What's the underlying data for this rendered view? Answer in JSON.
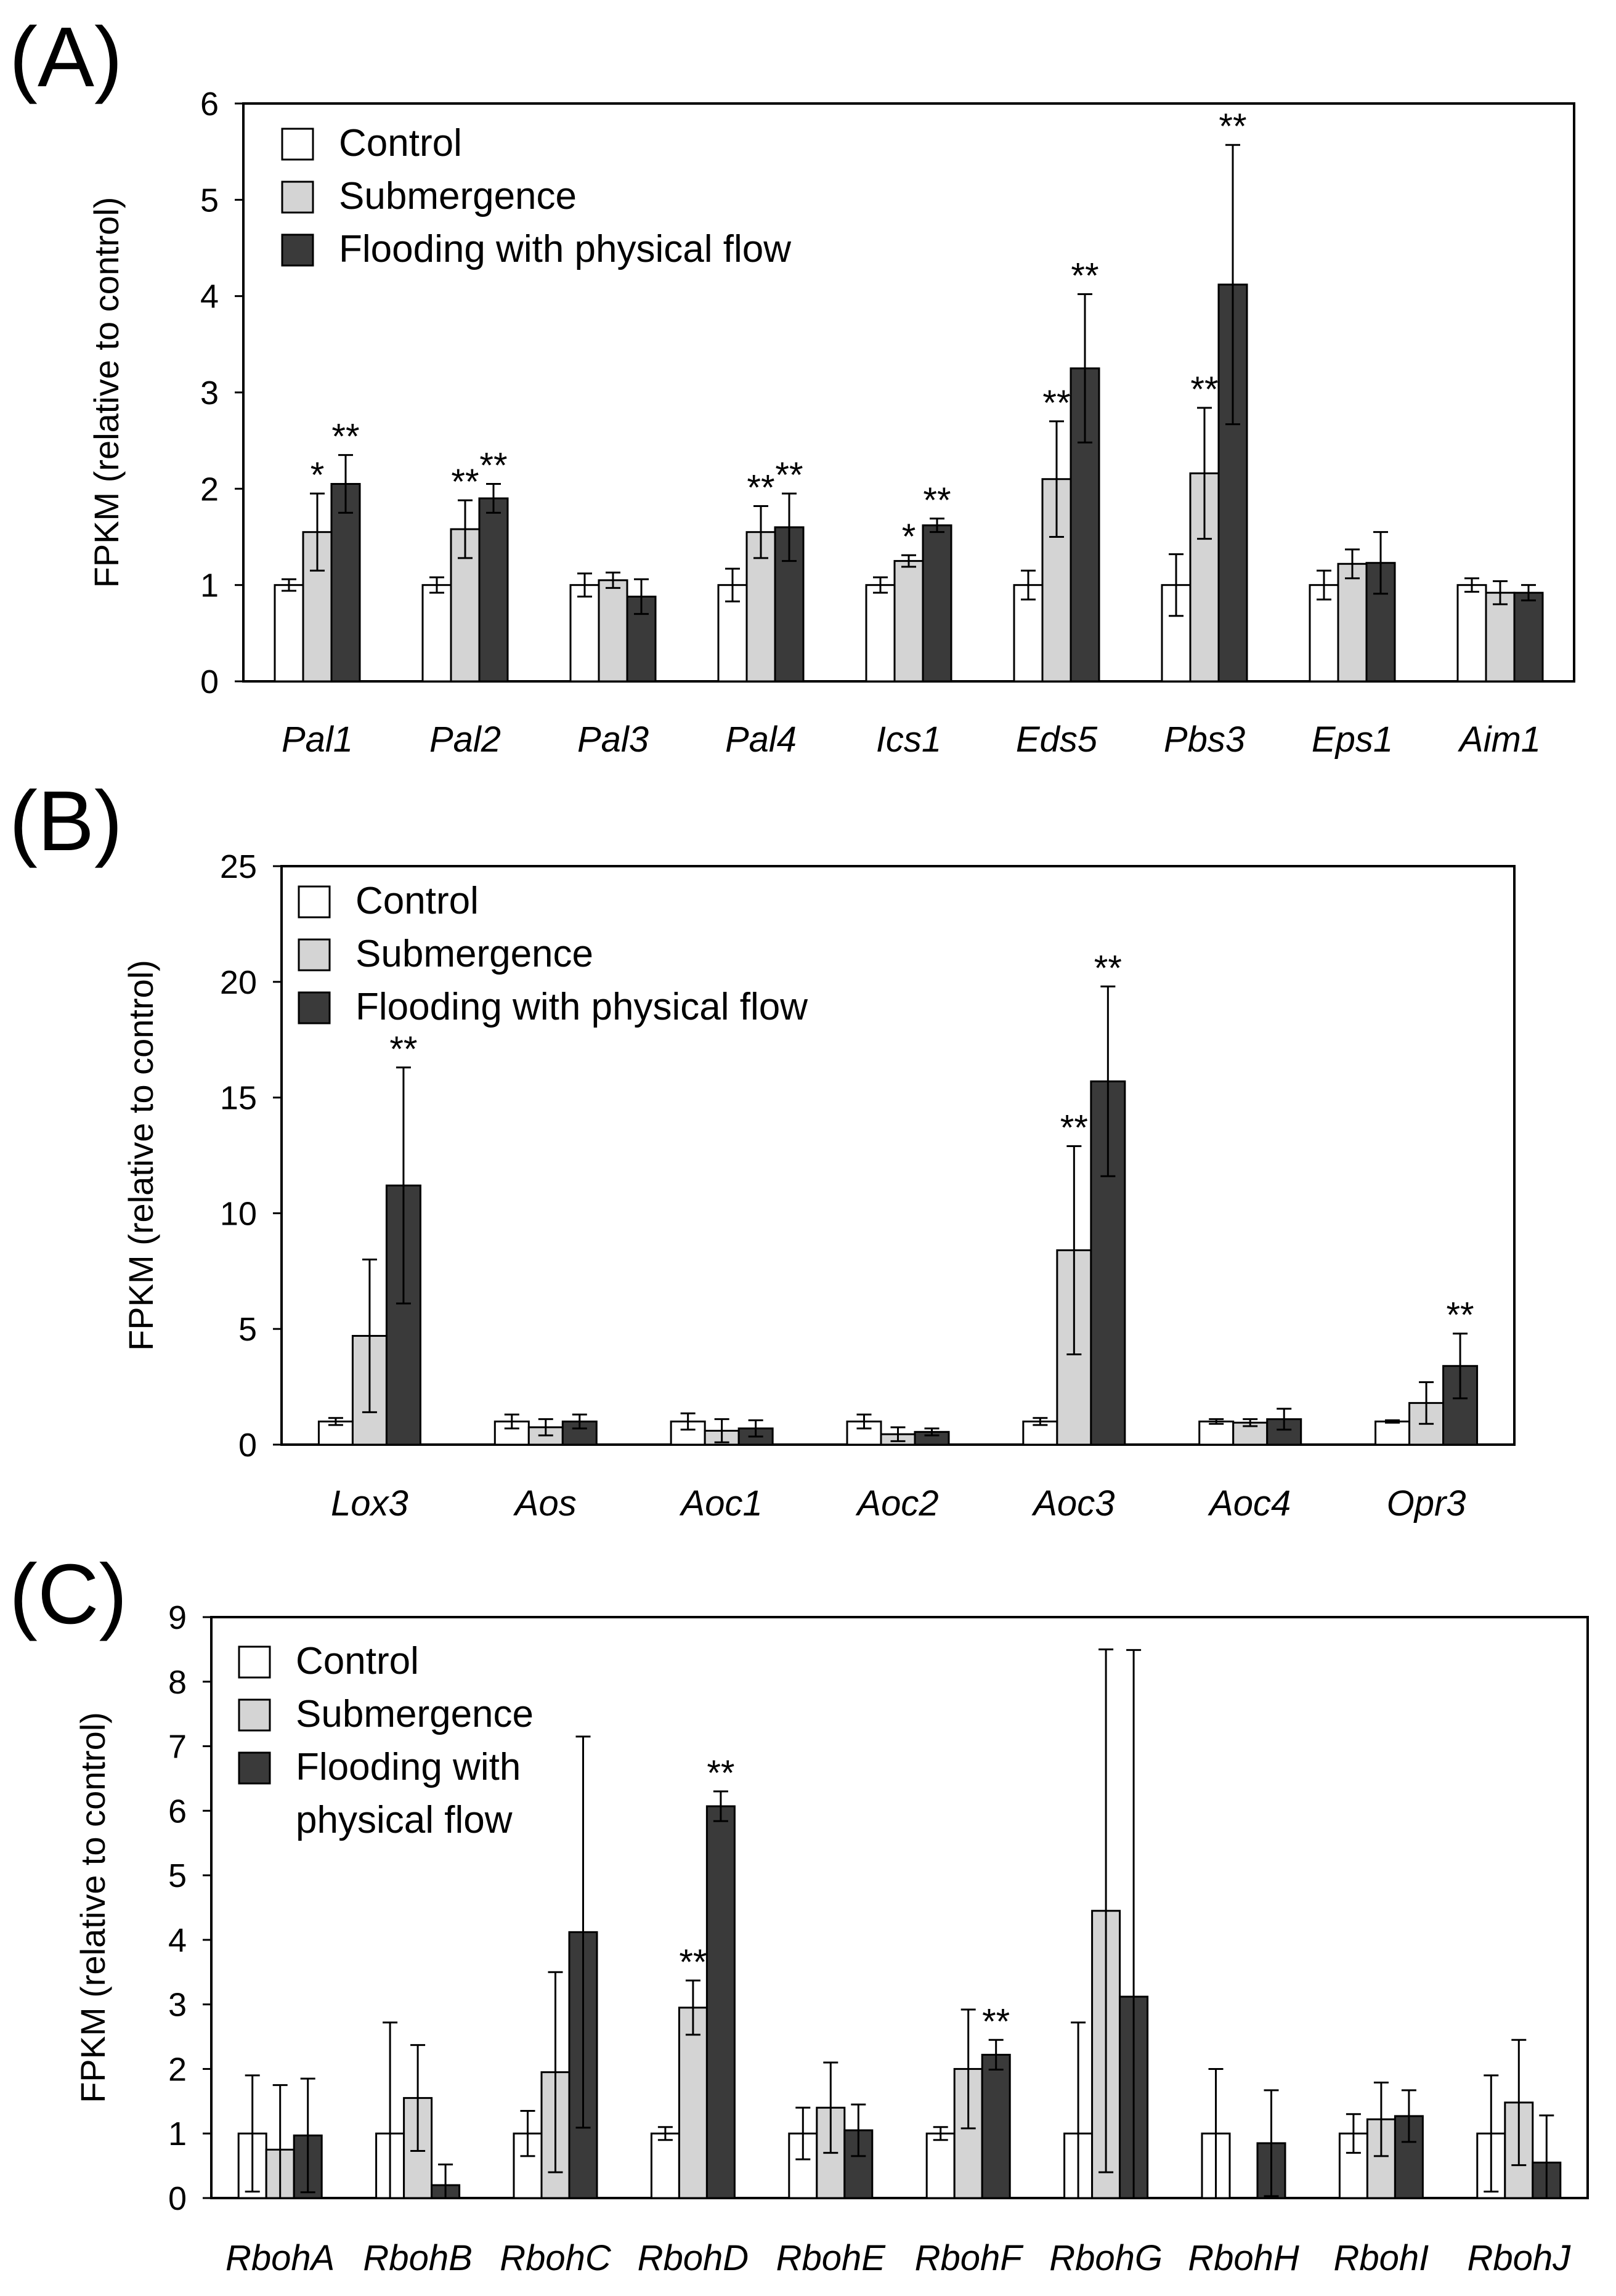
{
  "colors": {
    "control": "#ffffff",
    "submergence": "#d4d4d4",
    "flooding": "#3a3a3a",
    "axis": "#000000"
  },
  "chart_data": [
    {
      "type": "bar",
      "panel_label": "(A)",
      "ylabel": "FPKM (relative to control)",
      "ylim": [
        0,
        6
      ],
      "yticks": [
        "0",
        "1",
        "2",
        "3",
        "4",
        "5",
        "6"
      ],
      "legend": [
        "Control",
        "Submergence",
        "Flooding with physical flow"
      ],
      "categories": [
        "Pal1",
        "Pal2",
        "Pal3",
        "Pal4",
        "Ics1",
        "Eds5",
        "Pbs3",
        "Eps1",
        "Aim1"
      ],
      "series": [
        {
          "name": "Control",
          "values": [
            1.0,
            1.0,
            1.0,
            1.0,
            1.0,
            1.0,
            1.0,
            1.0,
            1.0
          ],
          "errors": [
            0.06,
            0.08,
            0.12,
            0.17,
            0.08,
            0.15,
            0.32,
            0.15,
            0.07
          ],
          "sig": [
            "",
            "",
            "",
            "",
            "",
            "",
            "",
            "",
            ""
          ]
        },
        {
          "name": "Submergence",
          "values": [
            1.55,
            1.58,
            1.05,
            1.55,
            1.25,
            2.1,
            2.16,
            1.22,
            0.92
          ],
          "errors": [
            0.4,
            0.3,
            0.08,
            0.27,
            0.06,
            0.6,
            0.68,
            0.15,
            0.12
          ],
          "sig": [
            "*",
            "**",
            "",
            "**",
            "*",
            "**",
            "**",
            "",
            ""
          ]
        },
        {
          "name": "Flooding with physical flow",
          "values": [
            2.05,
            1.9,
            0.88,
            1.6,
            1.62,
            3.25,
            4.12,
            1.23,
            0.92
          ],
          "errors": [
            0.3,
            0.15,
            0.18,
            0.35,
            0.07,
            0.77,
            1.45,
            0.32,
            0.08
          ],
          "sig": [
            "**",
            "**",
            "",
            "**",
            "**",
            "**",
            "**",
            "",
            ""
          ]
        }
      ]
    },
    {
      "type": "bar",
      "panel_label": "(B)",
      "ylabel": "FPKM (relative to control)",
      "ylim": [
        0,
        25
      ],
      "yticks": [
        "0",
        "5",
        "10",
        "15",
        "20",
        "25"
      ],
      "legend": [
        "Control",
        "Submergence",
        "Flooding with physical flow"
      ],
      "categories": [
        "Lox3",
        "Aos",
        "Aoc1",
        "Aoc2",
        "Aoc3",
        "Aoc4",
        "Opr3"
      ],
      "series": [
        {
          "name": "Control",
          "values": [
            1.0,
            1.0,
            1.0,
            1.0,
            1.0,
            1.0,
            1.0
          ],
          "errors": [
            0.15,
            0.3,
            0.35,
            0.3,
            0.15,
            0.1,
            0.05
          ],
          "sig": [
            "",
            "",
            "",
            "",
            "",
            "",
            ""
          ]
        },
        {
          "name": "Submergence",
          "values": [
            4.7,
            0.75,
            0.6,
            0.45,
            8.4,
            0.95,
            1.8
          ],
          "errors": [
            3.3,
            0.35,
            0.5,
            0.3,
            4.5,
            0.15,
            0.9
          ],
          "sig": [
            "",
            "",
            "",
            "",
            "**",
            "",
            ""
          ]
        },
        {
          "name": "Flooding with physical flow",
          "values": [
            11.2,
            1.0,
            0.7,
            0.55,
            15.7,
            1.1,
            3.4
          ],
          "errors": [
            5.1,
            0.3,
            0.35,
            0.15,
            4.1,
            0.45,
            1.4
          ],
          "sig": [
            "**",
            "",
            "",
            "",
            "**",
            "",
            "**"
          ]
        }
      ]
    },
    {
      "type": "bar",
      "panel_label": "(C)",
      "ylabel": "FPKM (relative to control)",
      "ylim": [
        0,
        9
      ],
      "yticks": [
        "0",
        "1",
        "2",
        "3",
        "4",
        "5",
        "6",
        "7",
        "8",
        "9"
      ],
      "legend": [
        "Control",
        "Submergence",
        "Flooding with",
        "physical flow"
      ],
      "categories": [
        "RbohA",
        "RbohB",
        "RbohC",
        "RbohD",
        "RbohE",
        "RbohF",
        "RbohG",
        "RbohH",
        "RbohI",
        "RbohJ"
      ],
      "series": [
        {
          "name": "Control",
          "values": [
            1.0,
            1.0,
            1.0,
            1.0,
            1.0,
            1.0,
            1.0,
            1.0,
            1.0,
            1.0
          ],
          "errors": [
            0.9,
            1.72,
            0.35,
            0.1,
            0.4,
            0.1,
            1.72,
            1.0,
            0.3,
            0.9
          ],
          "sig": [
            "",
            "",
            "",
            "",
            "",
            "",
            "",
            "",
            "",
            ""
          ]
        },
        {
          "name": "Submergence",
          "values": [
            0.75,
            1.55,
            1.95,
            2.95,
            1.4,
            2.0,
            4.45,
            0.0,
            1.22,
            1.48
          ],
          "errors": [
            1.0,
            0.82,
            1.55,
            0.42,
            0.7,
            0.92,
            4.05,
            0.0,
            0.57,
            0.97
          ],
          "sig": [
            "",
            "",
            "",
            "**",
            "",
            "",
            "",
            "",
            "",
            ""
          ]
        },
        {
          "name": "Flooding with physical flow",
          "values": [
            0.97,
            0.2,
            4.12,
            6.07,
            1.05,
            2.22,
            3.12,
            0.85,
            1.27,
            0.55
          ],
          "errors": [
            0.88,
            0.32,
            3.03,
            0.23,
            0.4,
            0.23,
            5.37,
            0.82,
            0.4,
            0.73
          ],
          "sig": [
            "",
            "",
            "",
            "**",
            "",
            "**",
            "",
            "",
            "",
            ""
          ]
        }
      ]
    }
  ]
}
